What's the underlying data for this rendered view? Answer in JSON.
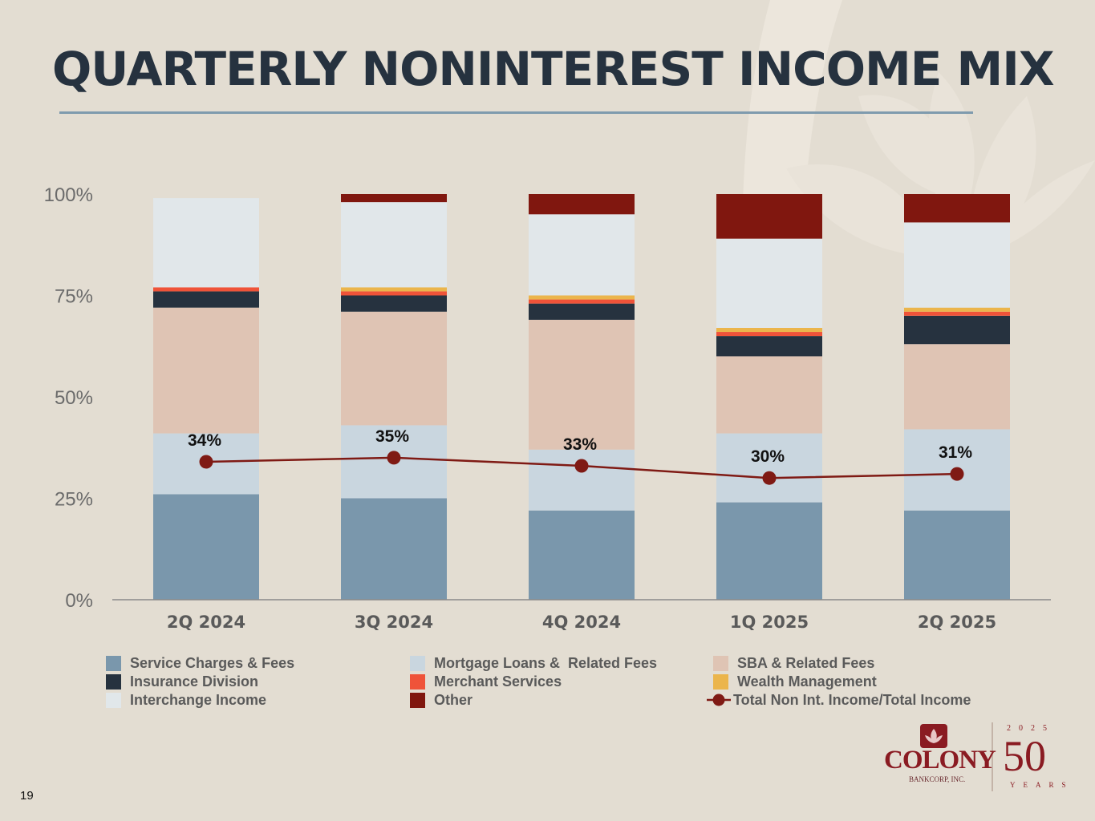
{
  "page": {
    "title": "QUARTERLY NONINTEREST INCOME MIX",
    "page_number": "19"
  },
  "logo": {
    "name": "COLONY",
    "subtitle": "BANKCORP, INC.",
    "year": "2025",
    "anniversary": "50",
    "anniversary_label": "YEARS"
  },
  "colors": {
    "background": "#e3ddd2",
    "title": "#26323f",
    "rule": "#7f9bae",
    "line": "#7f1a14"
  },
  "chart_data": {
    "type": "bar",
    "stacked": true,
    "title": "",
    "xlabel": "",
    "ylabel": "",
    "ylim": [
      0,
      100
    ],
    "yticks": [
      {
        "value": 0,
        "label": "0%"
      },
      {
        "value": 25,
        "label": "25%"
      },
      {
        "value": 50,
        "label": "50%"
      },
      {
        "value": 75,
        "label": "75%"
      },
      {
        "value": 100,
        "label": "100%"
      }
    ],
    "categories": [
      "2Q 2024",
      "3Q 2024",
      "4Q 2024",
      "1Q 2025",
      "2Q 2025"
    ],
    "series": [
      {
        "name": "Service Charges & Fees",
        "color": "#7a97ac",
        "values": [
          26,
          25,
          22,
          24,
          22
        ]
      },
      {
        "name": "Mortgage Loans &  Related Fees",
        "color": "#c9d6df",
        "values": [
          15,
          18,
          15,
          17,
          20
        ]
      },
      {
        "name": "SBA & Related Fees",
        "color": "#dfc4b4",
        "values": [
          31,
          28,
          32,
          19,
          21
        ]
      },
      {
        "name": "Insurance Division",
        "color": "#26323f",
        "values": [
          4,
          4,
          4,
          5,
          7
        ]
      },
      {
        "name": "Merchant Services",
        "color": "#ef5339",
        "values": [
          1,
          1,
          1,
          1,
          1
        ]
      },
      {
        "name": "Wealth Management",
        "color": "#ebb54c",
        "values": [
          0,
          1,
          1,
          1,
          1
        ]
      },
      {
        "name": "Interchange Income",
        "color": "#e1e7ea",
        "values": [
          22,
          21,
          20,
          22,
          21
        ]
      },
      {
        "name": "Other",
        "color": "#80170f",
        "values": [
          0,
          2,
          5,
          11,
          7
        ]
      }
    ],
    "line_series": {
      "name": "Total Non Int. Income/Total Income",
      "color": "#7f1a14",
      "values": [
        34,
        35,
        33,
        30,
        31
      ],
      "labels": [
        "34%",
        "35%",
        "33%",
        "30%",
        "31%"
      ]
    },
    "legend_position": "bottom"
  }
}
